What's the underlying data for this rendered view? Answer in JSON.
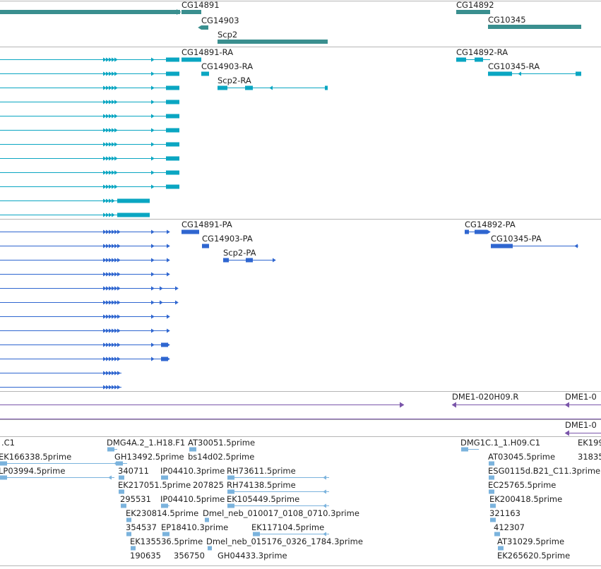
{
  "colors": {
    "gene": "#3a8f8f",
    "transcript": "#0aa6c2",
    "protein": "#2f66d0",
    "clone": "#7a55aa",
    "est": "#7bb3dd",
    "separator": "#b5b5b5"
  },
  "tracks": [
    {
      "id": "genes",
      "features": [
        {
          "label": "",
          "start": 0,
          "end": 255,
          "blocks": [
            [
              0,
              255
            ]
          ]
        },
        {
          "label": "CG14891",
          "start": 257,
          "end": 285,
          "blocks": [
            [
              257,
              285
            ]
          ]
        },
        {
          "label": "CG14903",
          "start": 285,
          "end": 295,
          "blocks": [
            [
              285,
              295
            ]
          ]
        },
        {
          "label": "Scp2",
          "start": 308,
          "end": 464,
          "blocks": [
            [
              308,
              464
            ]
          ]
        },
        {
          "label": "CG14892",
          "start": 646,
          "end": 694,
          "blocks": [
            [
              646,
              694
            ]
          ]
        },
        {
          "label": "CG10345",
          "start": 691,
          "end": 823,
          "blocks": [
            [
              691,
              823
            ]
          ]
        }
      ]
    },
    {
      "id": "transcripts",
      "features": [
        {
          "label": "CG14891-RA",
          "start": 257,
          "end": 285,
          "blocks": [
            [
              257,
              285
            ]
          ]
        },
        {
          "label": "CG14903-RA",
          "start": 285,
          "end": 296,
          "blocks": [
            [
              285,
              296
            ]
          ]
        },
        {
          "label": "Scp2-RA",
          "start": 308,
          "end": 464,
          "blocks": [
            [
              308,
              322
            ],
            [
              347,
              358
            ]
          ]
        },
        {
          "label": "CG14892-RA",
          "start": 646,
          "end": 694,
          "blocks": [
            [
              646,
              660
            ],
            [
              672,
              684
            ]
          ]
        },
        {
          "label": "CG10345-RA",
          "start": 691,
          "end": 823,
          "blocks": [
            [
              691,
              725
            ],
            [
              815,
              823
            ]
          ]
        }
      ]
    },
    {
      "id": "proteins",
      "features": [
        {
          "label": "CG14891-PA",
          "start": 257,
          "end": 282,
          "blocks": [
            [
              257,
              282
            ]
          ]
        },
        {
          "label": "CG14903-PA",
          "start": 286,
          "end": 296,
          "blocks": [
            [
              286,
              296
            ]
          ]
        },
        {
          "label": "Scp2-PA",
          "start": 316,
          "end": 388,
          "blocks": [
            [
              316,
              324
            ],
            [
              348,
              358
            ]
          ]
        },
        {
          "label": "CG14892-PA",
          "start": 658,
          "end": 692,
          "blocks": [
            [
              658,
              664
            ],
            [
              672,
              690
            ]
          ]
        },
        {
          "label": "CG10345-PA",
          "start": 695,
          "end": 819,
          "blocks": [
            [
              695,
              726
            ]
          ]
        }
      ]
    },
    {
      "id": "clones",
      "features": [
        {
          "label": "DME1-020H09.R",
          "start": 640,
          "end": 648
        },
        {
          "label": "DME1-0",
          "start": 800,
          "end": 812
        },
        {
          "label": "DME1-0",
          "start": 800,
          "end": 812
        }
      ]
    },
    {
      "id": "ests",
      "features": [
        {
          "label": ".C1"
        },
        {
          "label": "EK166338.5prime"
        },
        {
          "label": "LP03994.5prime"
        },
        {
          "label": "DMG4A.2_1.H18.F1"
        },
        {
          "label": "AT30051.5prime"
        },
        {
          "label": "GH13492.5prime"
        },
        {
          "label": "bs14d02.5prime"
        },
        {
          "label": "340711"
        },
        {
          "label": "IP04410.3prime"
        },
        {
          "label": "RH73611.5prime"
        },
        {
          "label": "EK217051.5prime"
        },
        {
          "label": "207825"
        },
        {
          "label": "RH74138.5prime"
        },
        {
          "label": "295531"
        },
        {
          "label": "IP04410.5prime"
        },
        {
          "label": "EK105449.5prime"
        },
        {
          "label": "EK230814.5prime"
        },
        {
          "label": "Dmel_neb_010017_0108_0710.3prime"
        },
        {
          "label": "354537"
        },
        {
          "label": "EP18410.3prime"
        },
        {
          "label": "EK117104.5prime"
        },
        {
          "label": "EK135536.5prime"
        },
        {
          "label": "Dmel_neb_015176_0326_1784.3prime"
        },
        {
          "label": "190635"
        },
        {
          "label": "356750"
        },
        {
          "label": "GH04433.3prime"
        },
        {
          "label": "DMG1C.1_1.H09.C1"
        },
        {
          "label": "EK199"
        },
        {
          "label": "AT03045.5prime"
        },
        {
          "label": "31835"
        },
        {
          "label": "ESG0115d.B21_C11.3prime"
        },
        {
          "label": "EC25765.5prime"
        },
        {
          "label": "EK200418.5prime"
        },
        {
          "label": "321163"
        },
        {
          "label": "412307"
        },
        {
          "label": "AT31029.5prime"
        },
        {
          "label": "EK265620.5prime"
        }
      ]
    }
  ]
}
